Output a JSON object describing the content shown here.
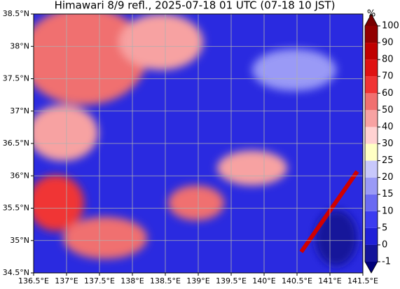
{
  "chart_data": {
    "type": "map",
    "title": "Himawari 8/9 refl., 2025-07-18 01 UTC (07-18 10 JST)",
    "xlim": [
      136.5,
      141.5
    ],
    "ylim": [
      34.5,
      38.5
    ],
    "xticks": [
      {
        "value": 136.5,
        "label": "136.5°E"
      },
      {
        "value": 137,
        "label": "137°E"
      },
      {
        "value": 137.5,
        "label": "137.5°E"
      },
      {
        "value": 138,
        "label": "138°E"
      },
      {
        "value": 138.5,
        "label": "138.5°E"
      },
      {
        "value": 139,
        "label": "139°E"
      },
      {
        "value": 139.5,
        "label": "139.5°E"
      },
      {
        "value": 140,
        "label": "140°E"
      },
      {
        "value": 140.5,
        "label": "140.5°E"
      },
      {
        "value": 141,
        "label": "141°E"
      },
      {
        "value": 141.5,
        "label": "141.5°E"
      }
    ],
    "yticks": [
      {
        "value": 34.5,
        "label": "34.5°N"
      },
      {
        "value": 35,
        "label": "35°N"
      },
      {
        "value": 35.5,
        "label": "35.5°N"
      },
      {
        "value": 36,
        "label": "36°N"
      },
      {
        "value": 36.5,
        "label": "36.5°N"
      },
      {
        "value": 37,
        "label": "37°N"
      },
      {
        "value": 37.5,
        "label": "37.5°N"
      },
      {
        "value": 38,
        "label": "38°N"
      },
      {
        "value": 38.5,
        "label": "38.5°N"
      }
    ],
    "grid": true,
    "colorbar": {
      "label": "%",
      "ticks": [
        -1,
        0,
        5,
        10,
        15,
        20,
        25,
        30,
        40,
        50,
        60,
        70,
        80,
        90,
        100
      ],
      "colors": [
        "#14149a",
        "#2020d8",
        "#3c3cf0",
        "#6a6af2",
        "#9a9af6",
        "#c8c8fb",
        "#ffffc4",
        "#ffd2d2",
        "#f7a2a2",
        "#f07070",
        "#f03434",
        "#e01212",
        "#c00000",
        "#920000"
      ],
      "under_color": "#00007a",
      "over_color": "#780000"
    }
  }
}
